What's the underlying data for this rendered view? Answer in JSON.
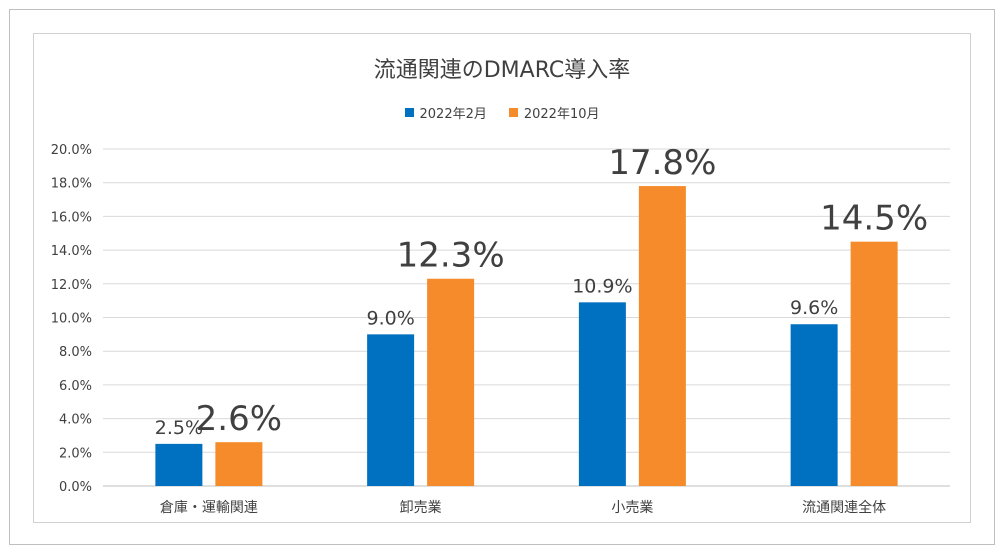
{
  "chart_data": {
    "type": "bar",
    "title": "流通関連のDMARC導入率",
    "categories": [
      "倉庫・運輸関連",
      "卸売業",
      "小売業",
      "流通関連全体"
    ],
    "series": [
      {
        "name": "2022年2月",
        "values": [
          2.5,
          9.0,
          10.9,
          9.6
        ],
        "labels": [
          "2.5%",
          "9.0%",
          "10.9%",
          "9.6%"
        ],
        "color": "#0070c0"
      },
      {
        "name": "2022年10月",
        "values": [
          2.6,
          12.3,
          17.8,
          14.5
        ],
        "labels": [
          "2.6%",
          "12.3%",
          "17.8%",
          "14.5%"
        ],
        "color": "#f58b2a"
      }
    ],
    "yticks": [
      "0.0%",
      "2.0%",
      "4.0%",
      "6.0%",
      "8.0%",
      "10.0%",
      "12.0%",
      "14.0%",
      "16.0%",
      "18.0%",
      "20.0%"
    ],
    "ylim": [
      0,
      20
    ],
    "grid": true,
    "legend_position": "top"
  }
}
